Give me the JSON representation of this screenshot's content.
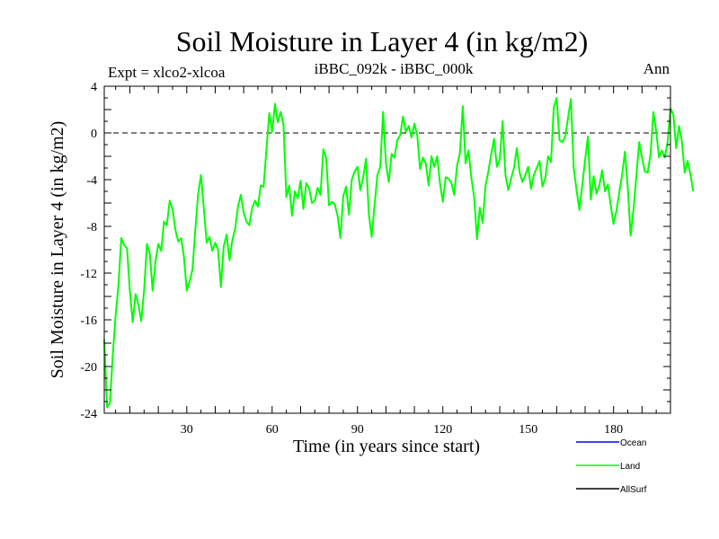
{
  "chart_data": {
    "type": "line",
    "title": "Soil Moisture in Layer 4 (in kg/m2)",
    "subtitle_left": "Expt = xlco2-xlcoa",
    "subtitle_center": "iBBC_092k - iBBC_000k",
    "subtitle_right": "Ann",
    "xlabel": "Time (in years since start)",
    "ylabel": "Soil Moisture in Layer 4 (in kg/m2)",
    "xlim": [
      1,
      200
    ],
    "ylim": [
      -24,
      4
    ],
    "x_ticks": [
      30,
      60,
      90,
      120,
      150,
      180
    ],
    "y_ticks": [
      4,
      0,
      -4,
      -8,
      -12,
      -16,
      -20,
      -24
    ],
    "reference_line": 0,
    "series": [
      {
        "name": "Ocean",
        "color": "#0000ff",
        "values": []
      },
      {
        "name": "Land",
        "color": "#00ff00",
        "values": [
          -17.7,
          -23.5,
          -23.1,
          -19.0,
          -15.6,
          -13.0,
          -9.0,
          -9.6,
          -9.9,
          -13.5,
          -16.2,
          -13.8,
          -14.7,
          -16.1,
          -13.5,
          -9.5,
          -10.3,
          -13.5,
          -11.0,
          -9.5,
          -10.1,
          -7.6,
          -7.9,
          -5.8,
          -6.5,
          -8.3,
          -9.3,
          -9.0,
          -10.6,
          -13.5,
          -12.7,
          -11.7,
          -8.3,
          -5.2,
          -3.6,
          -6.5,
          -9.4,
          -8.9,
          -10.1,
          -9.4,
          -10.0,
          -13.2,
          -9.7,
          -8.7,
          -10.9,
          -9.2,
          -8.2,
          -6.3,
          -5.3,
          -6.8,
          -7.6,
          -7.9,
          -6.4,
          -5.8,
          -6.3,
          -4.5,
          -4.6,
          -1.4,
          1.7,
          0.1,
          2.5,
          0.9,
          1.8,
          0.7,
          -5.5,
          -4.5,
          -7.1,
          -5.0,
          -5.6,
          -4.1,
          -6.5,
          -4.3,
          -4.7,
          -6.0,
          -5.8,
          -4.7,
          -5.3,
          -1.4,
          -2.1,
          -6.2,
          -5.9,
          -6.1,
          -7.1,
          -9.0,
          -5.4,
          -4.6,
          -7.0,
          -4.0,
          -3.3,
          -2.9,
          -4.9,
          -3.8,
          -2.2,
          -7.0,
          -8.9,
          -6.2,
          -3.6,
          -2.9,
          1.8,
          -2.6,
          -4.2,
          -1.8,
          -2.1,
          -0.6,
          -0.2,
          1.4,
          0.1,
          0.6,
          -0.4,
          0.8,
          -0.2,
          -3.1,
          -2.1,
          -2.6,
          -4.5,
          -2.0,
          -2.9,
          -2.0,
          -4.3,
          -5.9,
          -3.8,
          -3.9,
          -4.3,
          -5.3,
          -2.8,
          -1.7,
          2.3,
          -2.6,
          -1.5,
          -3.8,
          -5.5,
          -9.1,
          -6.4,
          -7.7,
          -4.5,
          -3.3,
          -1.8,
          -0.5,
          -2.9,
          -2.3,
          1.0,
          -3.6,
          -4.9,
          -3.9,
          -3.0,
          -1.3,
          -3.4,
          -4.2,
          -3.6,
          -2.9,
          -4.8,
          -3.6,
          -3.0,
          -2.4,
          -4.6,
          -3.9,
          -2.0,
          -2.5,
          2.2,
          3.0,
          -0.6,
          -0.8,
          -0.3,
          1.3,
          2.9,
          -3.0,
          -4.9,
          -6.6,
          -4.5,
          -2.3,
          -0.3,
          -5.7,
          -3.7,
          -5.2,
          -4.5,
          -3.2,
          -5.0,
          -4.4,
          -6.2,
          -7.8,
          -6.7,
          -5.1,
          -3.6,
          -1.6,
          -4.7,
          -8.8,
          -6.6,
          -3.7,
          -0.8,
          -2.1,
          -3.3,
          -3.4,
          -1.8,
          1.8,
          0.1,
          -2.1,
          -1.5,
          -2.1,
          -0.8,
          2.1,
          1.6,
          -1.3,
          0.6,
          -0.7,
          -3.4,
          -2.4,
          -3.5,
          -5.0
        ]
      },
      {
        "name": "AllSurf",
        "color": "#000000",
        "values": []
      }
    ],
    "legend_position": "bottom-right",
    "grid": false
  }
}
